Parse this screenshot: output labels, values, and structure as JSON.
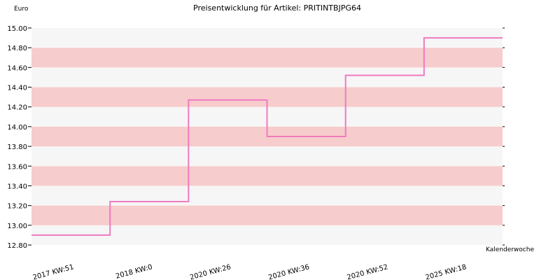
{
  "chart_data": {
    "type": "line",
    "title": "Preisentwicklung für Artikel: PRITINTBJPG64",
    "ylabel": "Euro",
    "xlabel": "Kalenderwoche",
    "ylim": [
      12.8,
      15.0
    ],
    "y_ticks": [
      "12.80",
      "13.00",
      "13.20",
      "13.40",
      "13.60",
      "13.80",
      "14.00",
      "14.20",
      "14.40",
      "14.60",
      "14.80",
      "15.00"
    ],
    "categories": [
      "2017 KW:51",
      "2018 KW:0",
      "2020 KW:26",
      "2020 KW:36",
      "2020 KW:52",
      "2025 KW:18"
    ],
    "series": [
      {
        "values": [
          12.9,
          13.24,
          14.27,
          13.9,
          14.52,
          14.9
        ]
      }
    ],
    "step": true,
    "grid": true,
    "colors": {
      "line": "#f07ac0",
      "band_a": "#f7cccc",
      "band_b": "#f6f6f6"
    }
  }
}
